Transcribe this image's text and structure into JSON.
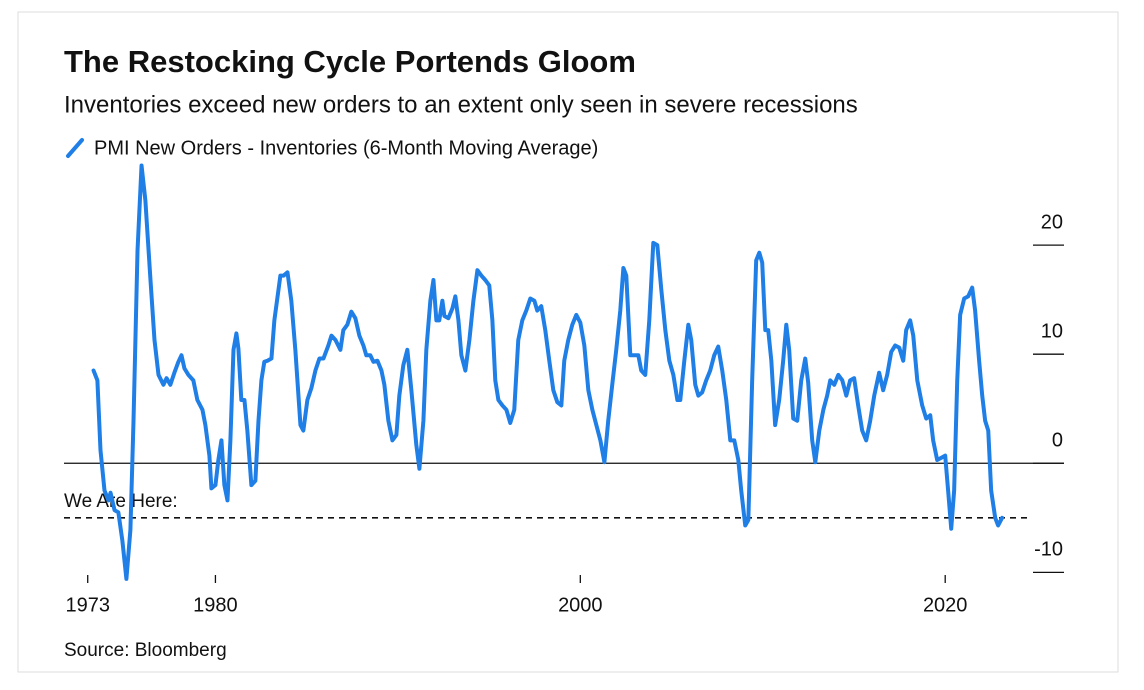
{
  "chart_data": {
    "type": "line",
    "title": "The Restocking Cycle Portends Gloom",
    "subtitle": "Inventories exceed new orders to an extent only seen in severe recessions",
    "source": "Source: Bloomberg",
    "x": [
      1973.32,
      1973.53,
      1973.7,
      1973.92,
      1974.14,
      1974.25,
      1974.47,
      1974.68,
      1974.9,
      1975.12,
      1975.34,
      1975.51,
      1975.73,
      1975.95,
      1976.16,
      1976.44,
      1976.66,
      1976.88,
      1977.15,
      1977.32,
      1977.53,
      1977.75,
      1977.97,
      1978.14,
      1978.3,
      1978.52,
      1978.79,
      1979.01,
      1979.29,
      1979.45,
      1979.67,
      1979.78,
      1980.0,
      1980.16,
      1980.33,
      1980.49,
      1980.66,
      1980.82,
      1980.99,
      1981.15,
      1981.26,
      1981.42,
      1981.59,
      1981.75,
      1981.97,
      1982.19,
      1982.36,
      1982.52,
      1982.68,
      1982.85,
      1983.07,
      1983.23,
      1983.56,
      1983.73,
      1983.95,
      1984.16,
      1984.38,
      1984.66,
      1984.82,
      1985.04,
      1985.26,
      1985.48,
      1985.7,
      1985.92,
      1986.19,
      1986.36,
      1986.58,
      1986.85,
      1987.01,
      1987.23,
      1987.45,
      1987.67,
      1987.89,
      1988.11,
      1988.27,
      1988.49,
      1988.66,
      1988.88,
      1989.1,
      1989.26,
      1989.48,
      1989.7,
      1989.92,
      1990.08,
      1990.3,
      1990.52,
      1990.74,
      1991.01,
      1991.18,
      1991.4,
      1991.56,
      1991.78,
      1991.95,
      1992.11,
      1992.27,
      1992.44,
      1992.55,
      1992.77,
      1992.99,
      1993.15,
      1993.32,
      1993.48,
      1993.7,
      1993.92,
      1994.14,
      1994.36,
      1994.58,
      1994.79,
      1995.01,
      1995.18,
      1995.34,
      1995.51,
      1995.73,
      1995.95,
      1996.16,
      1996.38,
      1996.6,
      1996.82,
      1997.04,
      1997.26,
      1997.48,
      1997.64,
      1997.86,
      1998.08,
      1998.3,
      1998.52,
      1998.74,
      1998.96,
      1999.12,
      1999.34,
      1999.56,
      1999.78,
      2000.0,
      2000.22,
      2000.44,
      2000.66,
      2000.88,
      2001.1,
      2001.32,
      2001.53,
      2001.75,
      2001.97,
      2002.19,
      2002.36,
      2002.52,
      2002.74,
      2002.96,
      2003.18,
      2003.34,
      2003.56,
      2003.78,
      2004.0,
      2004.22,
      2004.44,
      2004.66,
      2004.88,
      2005.1,
      2005.32,
      2005.48,
      2005.7,
      2005.92,
      2006.08,
      2006.3,
      2006.47,
      2006.68,
      2006.9,
      2007.12,
      2007.34,
      2007.56,
      2007.78,
      2008.0,
      2008.22,
      2008.44,
      2008.66,
      2008.82,
      2009.04,
      2009.21,
      2009.42,
      2009.64,
      2009.81,
      2009.97,
      2010.14,
      2010.3,
      2010.47,
      2010.68,
      2010.9,
      2011.12,
      2011.29,
      2011.45,
      2011.67,
      2011.89,
      2012.11,
      2012.33,
      2012.49,
      2012.71,
      2012.88,
      2013.1,
      2013.32,
      2013.53,
      2013.7,
      2013.92,
      2014.14,
      2014.36,
      2014.58,
      2014.79,
      2015.01,
      2015.23,
      2015.45,
      2015.67,
      2015.89,
      2016.11,
      2016.38,
      2016.6,
      2016.82,
      2017.04,
      2017.26,
      2017.48,
      2017.7,
      2017.86,
      2018.08,
      2018.25,
      2018.47,
      2018.74,
      2018.96,
      2019.18,
      2019.34,
      2019.56,
      2019.78,
      2020.0,
      2020.16,
      2020.33,
      2020.49,
      2020.66,
      2020.82,
      2021.04,
      2021.26,
      2021.48,
      2021.64,
      2021.86,
      2022.03,
      2022.19,
      2022.36,
      2022.52,
      2022.74,
      2022.9,
      2023.12
    ],
    "series": [
      {
        "name": "PMI New Orders - Inventories (6-Month Moving Average)",
        "color": "#1f7fe6",
        "values": [
          8.5,
          7.6,
          1.2,
          -2.5,
          -3.4,
          -2.7,
          -4.3,
          -4.5,
          -7.1,
          -10.6,
          -6.1,
          3.9,
          19.5,
          27.3,
          24.1,
          16.8,
          11.3,
          8.1,
          7.2,
          7.8,
          7.2,
          8.3,
          9.3,
          9.9,
          8.7,
          8.1,
          7.6,
          5.8,
          4.9,
          3.5,
          0.7,
          -2.3,
          -2.0,
          0.3,
          2.1,
          -2.0,
          -3.4,
          2.1,
          10.4,
          11.9,
          10.5,
          5.8,
          5.8,
          3.0,
          -2.0,
          -1.6,
          3.9,
          7.6,
          9.3,
          9.4,
          9.6,
          13.1,
          17.2,
          17.2,
          17.5,
          14.9,
          10.4,
          3.5,
          3.0,
          5.8,
          6.9,
          8.5,
          9.6,
          9.6,
          10.8,
          11.7,
          11.3,
          10.4,
          12.2,
          12.7,
          13.9,
          13.3,
          11.7,
          10.8,
          9.9,
          9.9,
          9.3,
          9.4,
          8.5,
          7.2,
          3.9,
          2.1,
          2.6,
          6.2,
          9.0,
          10.4,
          6.7,
          1.7,
          -0.5,
          3.9,
          10.4,
          14.9,
          16.8,
          13.1,
          13.1,
          14.9,
          13.5,
          13.3,
          14.2,
          15.3,
          13.1,
          9.9,
          8.5,
          11.3,
          14.9,
          17.7,
          17.2,
          16.8,
          16.3,
          13.1,
          7.6,
          5.8,
          5.3,
          4.9,
          3.7,
          4.9,
          11.3,
          13.1,
          14.0,
          15.1,
          14.9,
          14.0,
          14.4,
          12.2,
          9.4,
          6.7,
          5.6,
          5.3,
          9.4,
          11.3,
          12.7,
          13.6,
          12.9,
          10.8,
          6.7,
          4.9,
          3.5,
          2.1,
          0.1,
          3.9,
          7.2,
          10.4,
          14.0,
          17.9,
          17.2,
          9.9,
          9.9,
          9.9,
          8.5,
          8.1,
          13.1,
          20.2,
          20.0,
          15.9,
          12.2,
          9.4,
          8.1,
          5.8,
          5.8,
          9.4,
          12.7,
          11.3,
          7.2,
          6.2,
          6.5,
          7.6,
          8.5,
          9.9,
          10.7,
          8.5,
          5.8,
          2.1,
          2.1,
          0.3,
          -2.5,
          -5.7,
          -5.2,
          7.6,
          18.6,
          19.3,
          18.4,
          12.2,
          12.2,
          9.4,
          3.5,
          5.8,
          9.4,
          12.7,
          10.4,
          4.1,
          3.9,
          7.6,
          9.6,
          7.4,
          2.1,
          0.1,
          3.0,
          4.9,
          6.2,
          7.6,
          7.2,
          8.1,
          7.6,
          6.2,
          7.6,
          7.8,
          5.3,
          3.0,
          2.1,
          3.9,
          6.2,
          8.3,
          6.7,
          8.1,
          10.2,
          10.8,
          10.6,
          9.4,
          12.2,
          13.1,
          11.7,
          7.6,
          5.3,
          4.1,
          4.4,
          2.1,
          0.3,
          0.5,
          0.7,
          -2.5,
          -6.0,
          -2.5,
          7.6,
          13.6,
          15.1,
          15.3,
          16.1,
          14.0,
          9.4,
          6.2,
          3.9,
          3.0,
          -2.5,
          -5.0,
          -5.7,
          -5.0
        ]
      }
    ],
    "xlim": [
      1971.7,
      2024.1
    ],
    "xticks": [
      1973,
      1980,
      2000,
      2020
    ],
    "ylim": [
      -10.7,
      27.8
    ],
    "yticks": [
      -10,
      0,
      10,
      20
    ],
    "annotations": [
      {
        "text": "We Are Here:",
        "y": -5
      }
    ]
  }
}
